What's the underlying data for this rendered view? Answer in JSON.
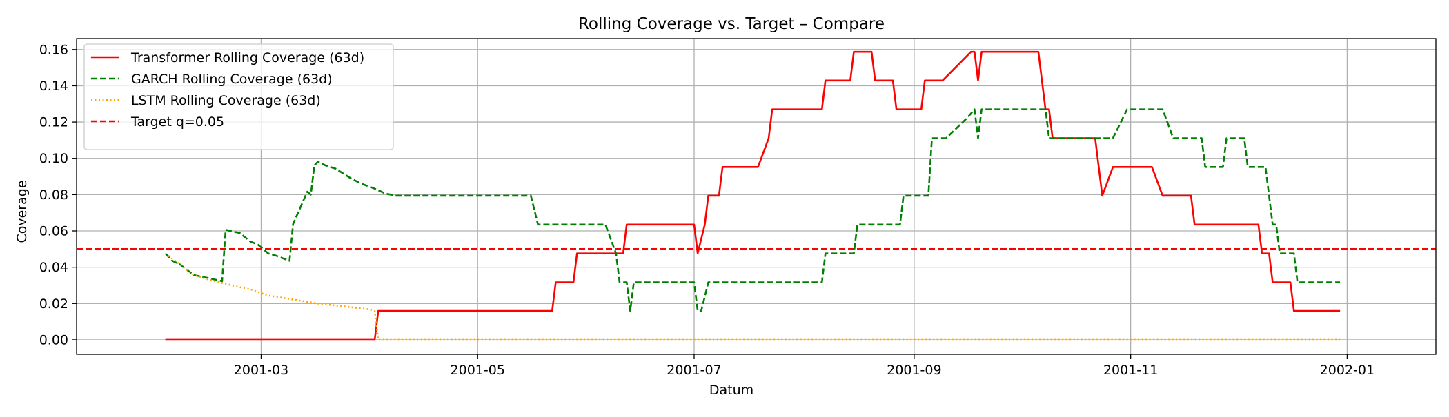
{
  "chart_data": {
    "type": "line",
    "title": "Rolling Coverage vs. Target – Compare",
    "xlabel": "Datum",
    "ylabel": "Coverage",
    "xlim": [
      "2001-01-08",
      "2002-01-26"
    ],
    "ylim": [
      -0.008,
      0.166
    ],
    "x_ticks": [
      "2001-03-01",
      "2001-05-01",
      "2001-07-01",
      "2001-09-01",
      "2001-11-01",
      "2002-01-01"
    ],
    "x_tick_labels": [
      "2001-03",
      "2001-05",
      "2001-07",
      "2001-09",
      "2001-11",
      "2002-01"
    ],
    "y_ticks": [
      0.0,
      0.02,
      0.04,
      0.06,
      0.08,
      0.1,
      0.12,
      0.14,
      0.16
    ],
    "y_tick_labels": [
      "0.00",
      "0.02",
      "0.04",
      "0.06",
      "0.08",
      "0.10",
      "0.12",
      "0.14",
      "0.16"
    ],
    "grid": true,
    "legend_position": "top-left",
    "series": [
      {
        "name": "Transformer Rolling Coverage (63d)",
        "color": "#ff0000",
        "style": "solid",
        "points": [
          [
            "2001-02-02",
            0.0
          ],
          [
            "2001-04-02",
            0.0
          ],
          [
            "2001-04-03",
            0.0159
          ],
          [
            "2001-05-22",
            0.0159
          ],
          [
            "2001-05-23",
            0.0317
          ],
          [
            "2001-05-28",
            0.0317
          ],
          [
            "2001-05-29",
            0.0476
          ],
          [
            "2001-06-11",
            0.0476
          ],
          [
            "2001-06-12",
            0.0635
          ],
          [
            "2001-07-01",
            0.0635
          ],
          [
            "2001-07-02",
            0.0476
          ],
          [
            "2001-07-04",
            0.0635
          ],
          [
            "2001-07-05",
            0.0794
          ],
          [
            "2001-07-08",
            0.0794
          ],
          [
            "2001-07-09",
            0.0952
          ],
          [
            "2001-07-19",
            0.0952
          ],
          [
            "2001-07-22",
            0.1111
          ],
          [
            "2001-07-23",
            0.127
          ],
          [
            "2001-08-06",
            0.127
          ],
          [
            "2001-08-07",
            0.1429
          ],
          [
            "2001-08-14",
            0.1429
          ],
          [
            "2001-08-15",
            0.1587
          ],
          [
            "2001-08-20",
            0.1587
          ],
          [
            "2001-08-21",
            0.1429
          ],
          [
            "2001-08-26",
            0.1429
          ],
          [
            "2001-08-27",
            0.127
          ],
          [
            "2001-09-03",
            0.127
          ],
          [
            "2001-09-04",
            0.1429
          ],
          [
            "2001-09-09",
            0.1429
          ],
          [
            "2001-09-17",
            0.1587
          ],
          [
            "2001-09-18",
            0.1587
          ],
          [
            "2001-09-19",
            0.1429
          ],
          [
            "2001-09-20",
            0.1587
          ],
          [
            "2001-10-06",
            0.1587
          ],
          [
            "2001-10-08",
            0.127
          ],
          [
            "2001-10-09",
            0.127
          ],
          [
            "2001-10-10",
            0.1111
          ],
          [
            "2001-10-22",
            0.1111
          ],
          [
            "2001-10-24",
            0.0794
          ],
          [
            "2001-10-27",
            0.0952
          ],
          [
            "2001-11-07",
            0.0952
          ],
          [
            "2001-11-10",
            0.0794
          ],
          [
            "2001-11-18",
            0.0794
          ],
          [
            "2001-11-19",
            0.0635
          ],
          [
            "2001-12-07",
            0.0635
          ],
          [
            "2001-12-08",
            0.0476
          ],
          [
            "2001-12-10",
            0.0476
          ],
          [
            "2001-12-11",
            0.0317
          ],
          [
            "2001-12-16",
            0.0317
          ],
          [
            "2001-12-17",
            0.0159
          ],
          [
            "2001-12-30",
            0.0159
          ]
        ]
      },
      {
        "name": "GARCH Rolling Coverage (63d)",
        "color": "#008000",
        "style": "dashed",
        "points": [
          [
            "2001-02-02",
            0.0476
          ],
          [
            "2001-02-04",
            0.0435
          ],
          [
            "2001-02-06",
            0.0417
          ],
          [
            "2001-02-10",
            0.0357
          ],
          [
            "2001-02-13",
            0.0345
          ],
          [
            "2001-02-18",
            0.0323
          ],
          [
            "2001-02-19",
            0.0606
          ],
          [
            "2001-02-23",
            0.0588
          ],
          [
            "2001-02-26",
            0.0541
          ],
          [
            "2001-02-28",
            0.0526
          ],
          [
            "2001-03-03",
            0.0476
          ],
          [
            "2001-03-05",
            0.0465
          ],
          [
            "2001-03-09",
            0.0435
          ],
          [
            "2001-03-10",
            0.0638
          ],
          [
            "2001-03-14",
            0.0816
          ],
          [
            "2001-03-15",
            0.08
          ],
          [
            "2001-03-16",
            0.0962
          ],
          [
            "2001-03-17",
            0.0981
          ],
          [
            "2001-03-19",
            0.0962
          ],
          [
            "2001-03-22",
            0.0943
          ],
          [
            "2001-03-26",
            0.0893
          ],
          [
            "2001-03-29",
            0.0862
          ],
          [
            "2001-04-02",
            0.0833
          ],
          [
            "2001-04-05",
            0.0806
          ],
          [
            "2001-04-08",
            0.0794
          ],
          [
            "2001-05-16",
            0.0794
          ],
          [
            "2001-05-18",
            0.0635
          ],
          [
            "2001-06-06",
            0.0635
          ],
          [
            "2001-06-09",
            0.0476
          ],
          [
            "2001-06-10",
            0.0317
          ],
          [
            "2001-06-12",
            0.0317
          ],
          [
            "2001-06-13",
            0.0159
          ],
          [
            "2001-06-14",
            0.0317
          ],
          [
            "2001-07-01",
            0.0317
          ],
          [
            "2001-07-02",
            0.0159
          ],
          [
            "2001-07-03",
            0.0159
          ],
          [
            "2001-07-05",
            0.0317
          ],
          [
            "2001-08-06",
            0.0317
          ],
          [
            "2001-08-07",
            0.0476
          ],
          [
            "2001-08-15",
            0.0476
          ],
          [
            "2001-08-16",
            0.0635
          ],
          [
            "2001-08-28",
            0.0635
          ],
          [
            "2001-08-29",
            0.0794
          ],
          [
            "2001-09-05",
            0.0794
          ],
          [
            "2001-09-06",
            0.1111
          ],
          [
            "2001-09-10",
            0.1111
          ],
          [
            "2001-09-16",
            0.1224
          ],
          [
            "2001-09-18",
            0.127
          ],
          [
            "2001-09-19",
            0.1111
          ],
          [
            "2001-09-20",
            0.127
          ],
          [
            "2001-10-08",
            0.127
          ],
          [
            "2001-10-09",
            0.1111
          ],
          [
            "2001-10-27",
            0.1111
          ],
          [
            "2001-10-31",
            0.127
          ],
          [
            "2001-11-10",
            0.127
          ],
          [
            "2001-11-13",
            0.1111
          ],
          [
            "2001-11-21",
            0.1111
          ],
          [
            "2001-11-22",
            0.0952
          ],
          [
            "2001-11-27",
            0.0952
          ],
          [
            "2001-11-28",
            0.1111
          ],
          [
            "2001-12-03",
            0.1111
          ],
          [
            "2001-12-04",
            0.0952
          ],
          [
            "2001-12-09",
            0.0952
          ],
          [
            "2001-12-11",
            0.0635
          ],
          [
            "2001-12-12",
            0.0635
          ],
          [
            "2001-12-13",
            0.0476
          ],
          [
            "2001-12-17",
            0.0476
          ],
          [
            "2001-12-18",
            0.0317
          ],
          [
            "2001-12-30",
            0.0317
          ]
        ]
      },
      {
        "name": "LSTM Rolling Coverage (63d)",
        "color": "#ffa500",
        "style": "dotted",
        "points": [
          [
            "2001-02-02",
            0.0476
          ],
          [
            "2001-02-06",
            0.0417
          ],
          [
            "2001-02-10",
            0.0357
          ],
          [
            "2001-02-14",
            0.0333
          ],
          [
            "2001-02-18",
            0.0313
          ],
          [
            "2001-02-22",
            0.0294
          ],
          [
            "2001-02-26",
            0.0278
          ],
          [
            "2001-03-03",
            0.0244
          ],
          [
            "2001-03-10",
            0.0222
          ],
          [
            "2001-03-17",
            0.02
          ],
          [
            "2001-03-24",
            0.0185
          ],
          [
            "2001-03-31",
            0.0169
          ],
          [
            "2001-04-02",
            0.0159
          ],
          [
            "2001-04-03",
            0.0
          ],
          [
            "2001-12-30",
            0.0
          ]
        ]
      },
      {
        "name": "Target q=0.05",
        "color": "#ff0000",
        "style": "dashed",
        "hline": 0.05
      }
    ]
  }
}
